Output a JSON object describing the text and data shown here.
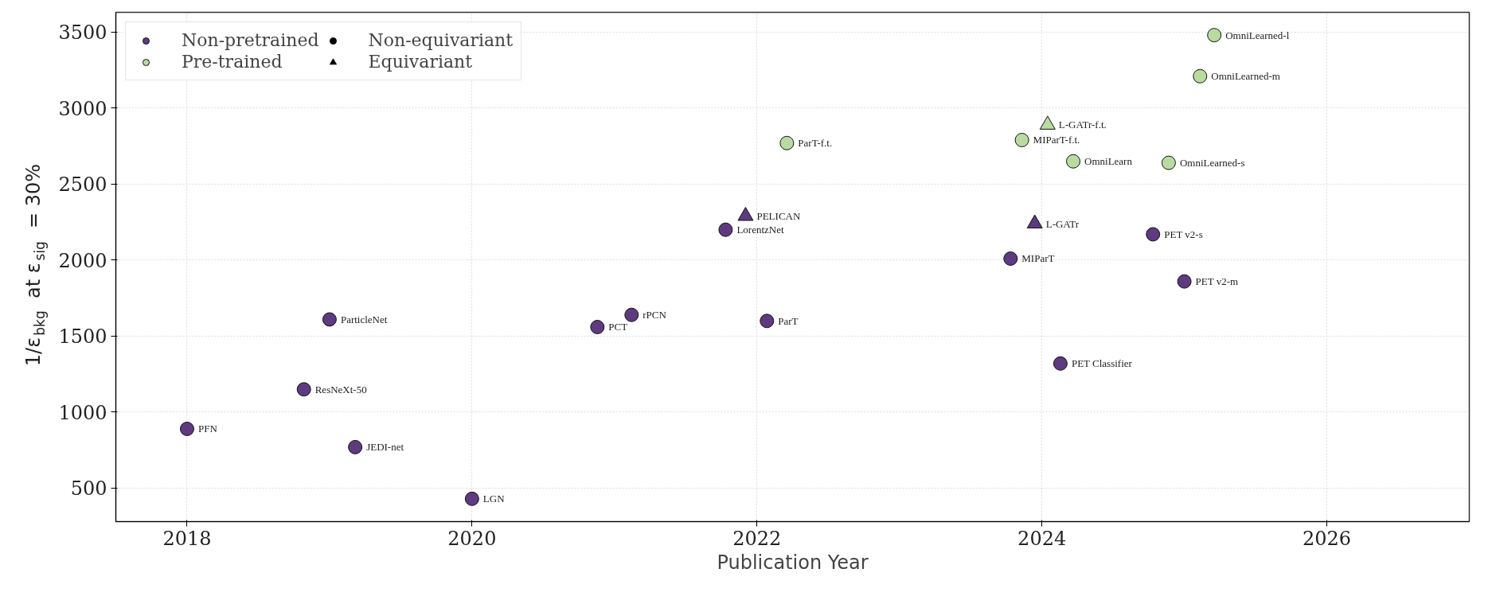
{
  "chart_data": {
    "type": "scatter",
    "xlabel": "Publication Year",
    "ylabel": "1/ε$_{bkg}$ at ε$_{sig}$ = 30%",
    "xlim": [
      2017.5,
      2027
    ],
    "ylim": [
      280,
      3630
    ],
    "xticks": [
      2018,
      2020,
      2022,
      2024,
      2026
    ],
    "yticks": [
      500,
      1000,
      1500,
      2000,
      2500,
      3000,
      3500
    ],
    "grid": true,
    "legend": "top left",
    "series": [
      {
        "name": "Non-pretrained",
        "color": "#5e3a7f",
        "marker": "circle",
        "x": [
          2018.0,
          2018.82,
          2019.0,
          2019.18,
          2020.0,
          2020.88,
          2021.12,
          2021.78,
          2022.07,
          2023.78,
          2024.13,
          2024.78,
          2025.0
        ],
        "values": [
          890,
          1150,
          1610,
          770,
          430,
          1560,
          1640,
          2200,
          1600,
          2010,
          1320,
          2170,
          1860
        ]
      },
      {
        "name": "Pre-trained",
        "color": "#b9dba1",
        "marker": "circle",
        "x": [
          2022.21,
          2023.86,
          2024.22,
          2024.89,
          2025.11,
          2025.21
        ],
        "values": [
          2770,
          2790,
          2650,
          2640,
          3210,
          3480
        ]
      },
      {
        "color": "#5e3a7f",
        "marker": "triangle",
        "x": [
          2021.92,
          2023.95
        ],
        "values": [
          2290,
          2240
        ]
      },
      {
        "color": "#b9dba1",
        "marker": "triangle",
        "x": [
          2024.04
        ],
        "values": [
          2890
        ]
      },
      {
        "name": "Non-equivariant",
        "color": "#000000",
        "marker": "circle"
      },
      {
        "name": "Equivariant",
        "color": "#000000",
        "marker": "triangle"
      }
    ],
    "annotations": [
      {
        "text": "PFN",
        "x": 2018.0,
        "y": 890
      },
      {
        "text": "ResNeXt-50",
        "x": 2018.82,
        "y": 1150
      },
      {
        "text": "ParticleNet",
        "x": 2019.0,
        "y": 1610
      },
      {
        "text": "JEDI-net",
        "x": 2019.18,
        "y": 770
      },
      {
        "text": "LGN",
        "x": 2020.0,
        "y": 430
      },
      {
        "text": "PCT",
        "x": 2020.88,
        "y": 1560
      },
      {
        "text": "rPCN",
        "x": 2021.12,
        "y": 1640
      },
      {
        "text": "LorentzNet",
        "x": 2021.78,
        "y": 2200
      },
      {
        "text": "PELICAN",
        "x": 2021.92,
        "y": 2290
      },
      {
        "text": "ParT",
        "x": 2022.07,
        "y": 1600
      },
      {
        "text": "ParT-f.t.",
        "x": 2022.21,
        "y": 2770
      },
      {
        "text": "MIParT",
        "x": 2023.78,
        "y": 2010
      },
      {
        "text": "L-GATr",
        "x": 2023.95,
        "y": 2240
      },
      {
        "text": "MIParT-f.t.",
        "x": 2023.86,
        "y": 2790
      },
      {
        "text": "L-GATr-f.t.",
        "x": 2024.04,
        "y": 2890
      },
      {
        "text": "OmniLearn",
        "x": 2024.22,
        "y": 2650
      },
      {
        "text": "PET Classifier",
        "x": 2024.13,
        "y": 1320
      },
      {
        "text": "PET v2-s",
        "x": 2024.78,
        "y": 2170
      },
      {
        "text": "PET v2-m",
        "x": 2025.0,
        "y": 1860
      },
      {
        "text": "OmniLearned-s",
        "x": 2024.89,
        "y": 2640
      },
      {
        "text": "OmniLearned-m",
        "x": 2025.11,
        "y": 3210
      },
      {
        "text": "OmniLearned-l",
        "x": 2025.21,
        "y": 3480
      }
    ]
  }
}
